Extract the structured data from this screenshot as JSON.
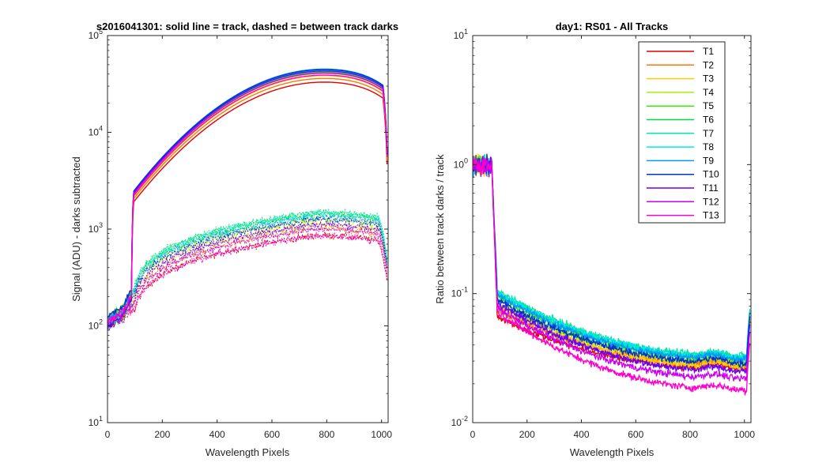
{
  "chart_data": [
    {
      "type": "line",
      "title": "s2016041301: solid line = track, dashed = between track darks",
      "xlabel": "Wavelength Pixels",
      "ylabel": "Signal (ADU) - darks subtracted",
      "xlim": [
        0,
        1024
      ],
      "ylim": [
        10,
        100000
      ],
      "yscale": "log",
      "grid": false,
      "xticks": [
        "0",
        "200",
        "400",
        "600",
        "800",
        "1000"
      ],
      "yticks": [
        {
          "base": "10",
          "exp": "1"
        },
        {
          "base": "10",
          "exp": "2"
        },
        {
          "base": "10",
          "exp": "3"
        },
        {
          "base": "10",
          "exp": "4"
        },
        {
          "base": "10",
          "exp": "5"
        }
      ],
      "series": [
        {
          "name": "T1",
          "color": "#e60000",
          "track_peak": 33000,
          "dark_peak": 860,
          "track_x90": 1900
        },
        {
          "name": "T2",
          "color": "#ff7700",
          "track_peak": 36000,
          "dark_peak": 1000,
          "track_x90": 2050
        },
        {
          "name": "T3",
          "color": "#ffcc00",
          "track_peak": 38500,
          "dark_peak": 1120,
          "track_x90": 2150
        },
        {
          "name": "T4",
          "color": "#aaee00",
          "track_peak": 40500,
          "dark_peak": 1250,
          "track_x90": 2250
        },
        {
          "name": "T5",
          "color": "#33ee00",
          "track_peak": 41500,
          "dark_peak": 1400,
          "track_x90": 2300
        },
        {
          "name": "T6",
          "color": "#00dd44",
          "track_peak": 42500,
          "dark_peak": 1480,
          "track_x90": 2350
        },
        {
          "name": "T7",
          "color": "#00e8aa",
          "track_peak": 43000,
          "dark_peak": 1500,
          "track_x90": 2380
        },
        {
          "name": "T8",
          "color": "#00e8ee",
          "track_peak": 44000,
          "dark_peak": 1420,
          "track_x90": 2420
        },
        {
          "name": "T9",
          "color": "#0099ff",
          "track_peak": 45000,
          "dark_peak": 1330,
          "track_x90": 2460
        },
        {
          "name": "T10",
          "color": "#0033cc",
          "track_peak": 44500,
          "dark_peak": 1250,
          "track_x90": 2440
        },
        {
          "name": "T11",
          "color": "#6600ff",
          "track_peak": 43000,
          "dark_peak": 1120,
          "track_x90": 2380
        },
        {
          "name": "T12",
          "color": "#cc00ee",
          "track_peak": 41000,
          "dark_peak": 1000,
          "track_x90": 2300
        },
        {
          "name": "T13",
          "color": "#ff00cc",
          "track_peak": 39000,
          "dark_peak": 850,
          "track_x90": 2200
        }
      ]
    },
    {
      "type": "line",
      "title": "day1: RS01 - All Tracks",
      "xlabel": "Wavelength Pixels",
      "ylabel": "Ratio between track darks / track",
      "xlim": [
        0,
        1024
      ],
      "ylim": [
        0.01,
        10
      ],
      "yscale": "log",
      "grid": false,
      "legend_position": "top-right",
      "xticks": [
        "0",
        "200",
        "400",
        "600",
        "800",
        "1000"
      ],
      "yticks": [
        {
          "base": "10",
          "exp": "-2"
        },
        {
          "base": "10",
          "exp": "-1"
        },
        {
          "base": "10",
          "exp": "0"
        },
        {
          "base": "10",
          "exp": "1"
        }
      ],
      "series": [
        {
          "name": "T1",
          "color": "#e60000",
          "ratio_at_100": 0.055,
          "ratio_at_980": 0.026
        },
        {
          "name": "T2",
          "color": "#ff7700",
          "ratio_at_100": 0.062,
          "ratio_at_980": 0.028
        },
        {
          "name": "T3",
          "color": "#ffcc00",
          "ratio_at_100": 0.068,
          "ratio_at_980": 0.027
        },
        {
          "name": "T4",
          "color": "#aaee00",
          "ratio_at_100": 0.072,
          "ratio_at_980": 0.029
        },
        {
          "name": "T5",
          "color": "#33ee00",
          "ratio_at_100": 0.08,
          "ratio_at_980": 0.031
        },
        {
          "name": "T6",
          "color": "#00dd44",
          "ratio_at_100": 0.085,
          "ratio_at_980": 0.032
        },
        {
          "name": "T7",
          "color": "#00e8aa",
          "ratio_at_100": 0.088,
          "ratio_at_980": 0.033
        },
        {
          "name": "T8",
          "color": "#00e8ee",
          "ratio_at_100": 0.085,
          "ratio_at_980": 0.032
        },
        {
          "name": "T9",
          "color": "#0099ff",
          "ratio_at_100": 0.082,
          "ratio_at_980": 0.031
        },
        {
          "name": "T10",
          "color": "#0033cc",
          "ratio_at_100": 0.075,
          "ratio_at_980": 0.029
        },
        {
          "name": "T11",
          "color": "#6600ff",
          "ratio_at_100": 0.07,
          "ratio_at_980": 0.025
        },
        {
          "name": "T12",
          "color": "#cc00ee",
          "ratio_at_100": 0.065,
          "ratio_at_980": 0.022
        },
        {
          "name": "T13",
          "color": "#ff00cc",
          "ratio_at_100": 0.06,
          "ratio_at_980": 0.018
        }
      ]
    }
  ]
}
